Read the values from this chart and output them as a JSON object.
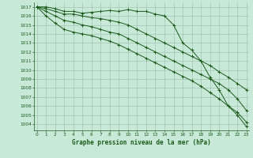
{
  "xlabel": "Graphe pression niveau de la mer (hPa)",
  "x_ticks": [
    0,
    1,
    2,
    3,
    4,
    5,
    6,
    7,
    8,
    9,
    10,
    11,
    12,
    13,
    14,
    15,
    16,
    17,
    18,
    19,
    20,
    21,
    22,
    23
  ],
  "ylim": [
    1003.3,
    1017.5
  ],
  "xlim": [
    -0.3,
    23.3
  ],
  "ytick_min": 1004,
  "ytick_max": 1017,
  "bg_color": "#c8e8d8",
  "grid_color": "#9dbdac",
  "line_color": "#1a5c1a",
  "series": [
    [
      1017.0,
      1017.0,
      1016.8,
      1016.5,
      1016.5,
      1016.3,
      1016.4,
      1016.5,
      1016.6,
      1016.5,
      1016.7,
      1016.5,
      1016.5,
      1016.2,
      1016.0,
      1015.0,
      1013.0,
      1012.2,
      1011.0,
      1009.2,
      1007.8,
      1006.0,
      1005.0,
      1003.7
    ],
    [
      1017.0,
      1016.8,
      1016.5,
      1016.2,
      1016.2,
      1016.0,
      1015.8,
      1015.7,
      1015.5,
      1015.3,
      1015.0,
      1014.5,
      1014.0,
      1013.5,
      1013.0,
      1012.5,
      1012.0,
      1011.5,
      1011.0,
      1010.5,
      1009.8,
      1009.2,
      1008.5,
      1007.8
    ],
    [
      1017.0,
      1016.5,
      1016.0,
      1015.5,
      1015.3,
      1015.0,
      1014.8,
      1014.5,
      1014.2,
      1014.0,
      1013.5,
      1013.0,
      1012.5,
      1012.0,
      1011.5,
      1011.0,
      1010.5,
      1010.0,
      1009.5,
      1009.0,
      1008.5,
      1007.8,
      1006.8,
      1005.5
    ],
    [
      1017.0,
      1016.0,
      1015.2,
      1014.5,
      1014.2,
      1014.0,
      1013.8,
      1013.5,
      1013.2,
      1012.8,
      1012.3,
      1011.8,
      1011.3,
      1010.8,
      1010.3,
      1009.8,
      1009.3,
      1008.8,
      1008.2,
      1007.5,
      1006.8,
      1006.0,
      1005.3,
      1004.2
    ]
  ]
}
